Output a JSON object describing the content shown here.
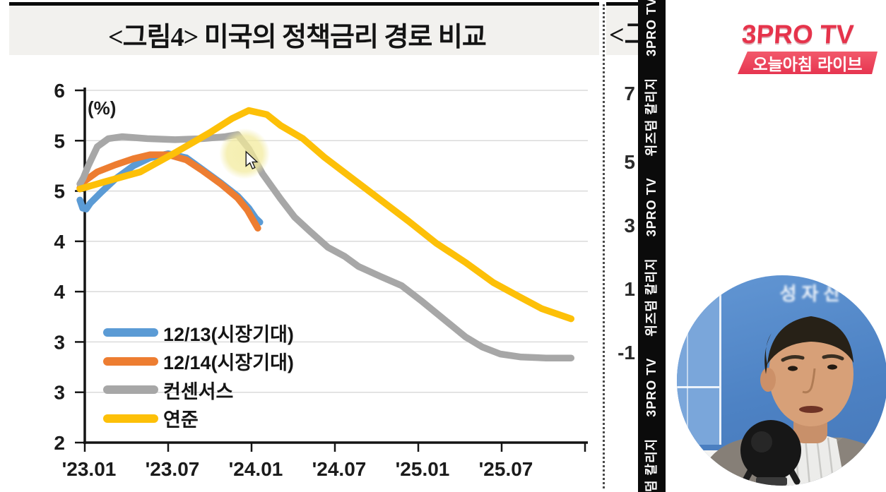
{
  "chart1": {
    "title": "<그림4> 미국의 정책금리 경로 비교",
    "unit_label": "(%)"
  },
  "chart2": {
    "title_fragment": "<그",
    "y_tick_labels": [
      "7",
      "5",
      "3",
      "1",
      "-1"
    ]
  },
  "watermark_strip": {
    "phrases": [
      "위즈덤 칼리지",
      "3PRO TV"
    ],
    "sequence": [
      "덤 칼리지",
      "3PRO TV",
      "위즈덤 칼리지",
      "3PRO TV",
      "위즈덤 칼리지",
      "3PRO TV",
      "위즈덤 칼리지"
    ]
  },
  "branding": {
    "logo_text": "3PRO TV",
    "badge_bold": "오늘아침",
    "badge_rest": "라이브",
    "logo_color": "#e6334b",
    "badge_color": "#ee4a5c"
  },
  "webcam": {
    "wall_text": "성자산"
  },
  "chart_data": {
    "type": "line",
    "title": "<그림4> 미국의 정책금리 경로 비교",
    "ylabel": "(%)",
    "grid": true,
    "legend_position": "inside-bottom-left",
    "x_axis": {
      "tick_labels": [
        "'23.01",
        "'23.07",
        "'24.01",
        "'24.07",
        "'25.01",
        "'25.07"
      ],
      "tick_month_offsets": [
        0,
        6,
        12,
        18,
        24,
        30
      ],
      "axis_end_month": 36
    },
    "y_axis": {
      "unit": "%",
      "tick_labels_displayed": [
        "6",
        "5",
        "5",
        "4",
        "4",
        "3",
        "3",
        "2"
      ],
      "tick_values": [
        6.0,
        5.5,
        5.0,
        4.5,
        4.0,
        3.5,
        3.0,
        2.5
      ],
      "range": [
        2.5,
        6.0
      ]
    },
    "series": [
      {
        "name": "12/13(시장기대)",
        "color": "#5b9bd5",
        "points": [
          [
            -0.35,
            4.91
          ],
          [
            -0.15,
            4.83
          ],
          [
            0.1,
            4.82
          ],
          [
            0.4,
            4.88
          ],
          [
            1.2,
            4.99
          ],
          [
            2.2,
            5.12
          ],
          [
            3.5,
            5.25
          ],
          [
            4.7,
            5.33
          ],
          [
            6.0,
            5.37
          ],
          [
            7.3,
            5.33
          ],
          [
            8.5,
            5.21
          ],
          [
            9.8,
            5.08
          ],
          [
            11.0,
            4.95
          ],
          [
            11.8,
            4.83
          ],
          [
            12.3,
            4.73
          ],
          [
            12.6,
            4.69
          ]
        ]
      },
      {
        "name": "12/14(시장기대)",
        "color": "#ed7d31",
        "points": [
          [
            -0.35,
            5.03
          ],
          [
            0.0,
            5.1
          ],
          [
            0.9,
            5.19
          ],
          [
            2.2,
            5.26
          ],
          [
            3.5,
            5.32
          ],
          [
            4.7,
            5.36
          ],
          [
            6.0,
            5.36
          ],
          [
            7.3,
            5.31
          ],
          [
            8.5,
            5.2
          ],
          [
            9.8,
            5.07
          ],
          [
            11.0,
            4.93
          ],
          [
            11.7,
            4.81
          ],
          [
            12.2,
            4.69
          ],
          [
            12.45,
            4.63
          ]
        ]
      },
      {
        "name": "컨센서스",
        "color": "#a7a7a7",
        "points": [
          [
            -0.35,
            5.07
          ],
          [
            -0.1,
            5.13
          ],
          [
            0.25,
            5.25
          ],
          [
            0.9,
            5.44
          ],
          [
            1.7,
            5.52
          ],
          [
            2.7,
            5.54
          ],
          [
            4.5,
            5.52
          ],
          [
            6.5,
            5.51
          ],
          [
            8.5,
            5.52
          ],
          [
            10.1,
            5.54
          ],
          [
            11.0,
            5.56
          ],
          [
            11.8,
            5.42
          ],
          [
            12.8,
            5.17
          ],
          [
            14.1,
            4.92
          ],
          [
            15.1,
            4.74
          ],
          [
            16.2,
            4.6
          ],
          [
            17.5,
            4.44
          ],
          [
            18.7,
            4.35
          ],
          [
            19.7,
            4.25
          ],
          [
            21.3,
            4.15
          ],
          [
            22.8,
            4.06
          ],
          [
            24.3,
            3.9
          ],
          [
            25.8,
            3.73
          ],
          [
            27.4,
            3.55
          ],
          [
            28.6,
            3.45
          ],
          [
            29.9,
            3.38
          ],
          [
            31.4,
            3.35
          ],
          [
            33.2,
            3.34
          ],
          [
            35.0,
            3.34
          ]
        ]
      },
      {
        "name": "연준",
        "color": "#fdc008",
        "points": [
          [
            -0.35,
            5.02
          ],
          [
            1.4,
            5.09
          ],
          [
            4.0,
            5.19
          ],
          [
            6.5,
            5.38
          ],
          [
            9.0,
            5.58
          ],
          [
            10.6,
            5.72
          ],
          [
            11.8,
            5.8
          ],
          [
            13.1,
            5.76
          ],
          [
            14.1,
            5.65
          ],
          [
            15.7,
            5.52
          ],
          [
            17.2,
            5.34
          ],
          [
            19.2,
            5.13
          ],
          [
            21.3,
            4.91
          ],
          [
            23.3,
            4.7
          ],
          [
            25.3,
            4.48
          ],
          [
            27.4,
            4.29
          ],
          [
            29.4,
            4.09
          ],
          [
            31.4,
            3.94
          ],
          [
            32.9,
            3.83
          ],
          [
            35.0,
            3.73
          ]
        ]
      }
    ],
    "annotations": {
      "cursor_highlight": {
        "month": 11.5,
        "value": 5.37,
        "radius_px": 36,
        "description": "pale yellow spotlight with mouse cursor near '24.01 on 컨센서스 line"
      }
    }
  }
}
